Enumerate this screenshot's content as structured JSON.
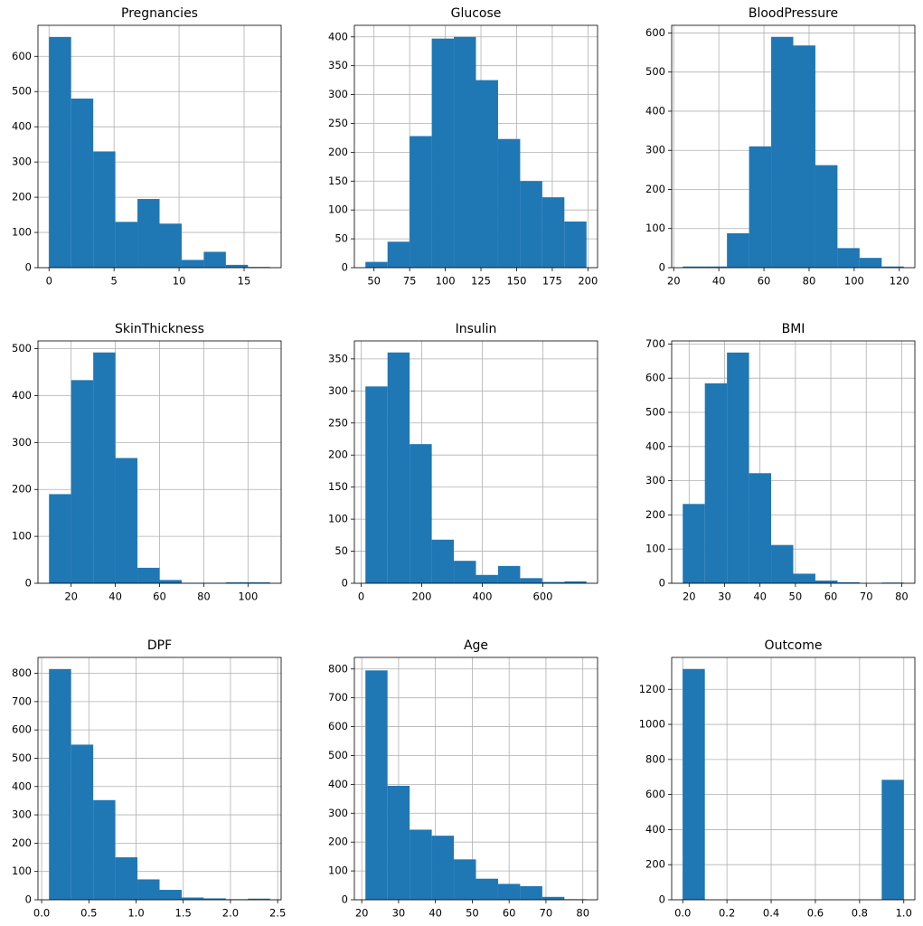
{
  "chart_data": [
    {
      "type": "histogram",
      "title": "Pregnancies",
      "color": "#1f77b4",
      "grid": true,
      "bins": [
        0,
        1.7,
        3.4,
        5.1,
        6.8,
        8.5,
        10.2,
        11.9,
        13.6,
        15.3,
        17
      ],
      "counts": [
        655,
        480,
        330,
        130,
        195,
        125,
        22,
        45,
        8,
        2
      ],
      "xlim": [
        -0.85,
        17.85
      ],
      "ylim": [
        0,
        688
      ],
      "xticks": [
        0,
        5,
        10,
        15
      ],
      "yticks": [
        0,
        100,
        200,
        300,
        400,
        500,
        600
      ]
    },
    {
      "type": "histogram",
      "title": "Glucose",
      "color": "#1f77b4",
      "grid": true,
      "bins": [
        44,
        59.5,
        75,
        90.5,
        106,
        121.5,
        137,
        152.5,
        168,
        183.5,
        199
      ],
      "counts": [
        10,
        45,
        228,
        397,
        400,
        325,
        223,
        150,
        122,
        80
      ],
      "xlim": [
        36.25,
        206.75
      ],
      "ylim": [
        0,
        420
      ],
      "xticks": [
        50,
        75,
        100,
        125,
        150,
        175,
        200
      ],
      "yticks": [
        0,
        50,
        100,
        150,
        200,
        250,
        300,
        350,
        400
      ]
    },
    {
      "type": "histogram",
      "title": "BloodPressure",
      "color": "#1f77b4",
      "grid": true,
      "bins": [
        24,
        33.8,
        43.6,
        53.4,
        63.2,
        73,
        82.8,
        92.6,
        102.4,
        112.2,
        122
      ],
      "counts": [
        3,
        3,
        88,
        310,
        590,
        568,
        262,
        50,
        25,
        3
      ],
      "xlim": [
        19.1,
        126.9
      ],
      "ylim": [
        0,
        619.5
      ],
      "xticks": [
        20,
        40,
        60,
        80,
        100,
        120
      ],
      "yticks": [
        0,
        100,
        200,
        300,
        400,
        500,
        600
      ]
    },
    {
      "type": "histogram",
      "title": "SkinThickness",
      "color": "#1f77b4",
      "grid": true,
      "bins": [
        10,
        20,
        30,
        40,
        50,
        60,
        70,
        80,
        90,
        100,
        110
      ],
      "counts": [
        190,
        433,
        492,
        267,
        33,
        7,
        1,
        1,
        2,
        2
      ],
      "xlim": [
        5,
        115
      ],
      "ylim": [
        0,
        516.6
      ],
      "xticks": [
        20,
        40,
        60,
        80,
        100
      ],
      "yticks": [
        0,
        100,
        200,
        300,
        400,
        500
      ]
    },
    {
      "type": "histogram",
      "title": "Insulin",
      "color": "#1f77b4",
      "grid": true,
      "bins": [
        14,
        87,
        160,
        233,
        306,
        379,
        452,
        525,
        598,
        671,
        744
      ],
      "counts": [
        307,
        360,
        217,
        68,
        35,
        13,
        27,
        8,
        2,
        3
      ],
      "xlim": [
        -22.5,
        780.5
      ],
      "ylim": [
        0,
        378
      ],
      "xticks": [
        0,
        200,
        400,
        600
      ],
      "yticks": [
        0,
        50,
        100,
        150,
        200,
        250,
        300,
        350
      ]
    },
    {
      "type": "histogram",
      "title": "BMI",
      "color": "#1f77b4",
      "grid": true,
      "bins": [
        18.2,
        24.44,
        30.68,
        36.92,
        43.16,
        49.4,
        55.64,
        61.88,
        68.12,
        74.36,
        80.6
      ],
      "counts": [
        232,
        585,
        675,
        322,
        112,
        28,
        8,
        3,
        0,
        2
      ],
      "xlim": [
        15.08,
        83.72
      ],
      "ylim": [
        0,
        709
      ],
      "xticks": [
        20,
        30,
        40,
        50,
        60,
        70,
        80
      ],
      "yticks": [
        0,
        100,
        200,
        300,
        400,
        500,
        600,
        700
      ]
    },
    {
      "type": "histogram",
      "title": "DPF",
      "color": "#1f77b4",
      "grid": true,
      "bins": [
        0.078,
        0.3122,
        0.5464,
        0.7806,
        1.0148,
        1.249,
        1.4832,
        1.7174,
        1.9516,
        2.1858,
        2.42
      ],
      "counts": [
        815,
        548,
        352,
        150,
        72,
        35,
        8,
        5,
        2,
        4
      ],
      "xlim": [
        -0.039,
        2.537
      ],
      "ylim": [
        0,
        856
      ],
      "xticks": [
        {
          "value": 0,
          "label": "0.0"
        },
        0.5,
        {
          "value": 1,
          "label": "1.0"
        },
        1.5,
        {
          "value": 2,
          "label": "2.0"
        },
        2.5
      ],
      "yticks": [
        0,
        100,
        200,
        300,
        400,
        500,
        600,
        700,
        800
      ]
    },
    {
      "type": "histogram",
      "title": "Age",
      "color": "#1f77b4",
      "grid": true,
      "bins": [
        21,
        27,
        33,
        39,
        45,
        51,
        57,
        63,
        69,
        75,
        81
      ],
      "counts": [
        795,
        395,
        243,
        222,
        140,
        73,
        55,
        47,
        10,
        2
      ],
      "xlim": [
        18,
        84
      ],
      "ylim": [
        0,
        840
      ],
      "xticks": [
        20,
        30,
        40,
        50,
        60,
        70,
        80
      ],
      "yticks": [
        0,
        100,
        200,
        300,
        400,
        500,
        600,
        700,
        800
      ]
    },
    {
      "type": "histogram",
      "title": "Outcome",
      "color": "#1f77b4",
      "grid": true,
      "bins": [
        0,
        0.1,
        0.2,
        0.3,
        0.4,
        0.5,
        0.6,
        0.7,
        0.8,
        0.9,
        1
      ],
      "counts": [
        1316,
        0,
        0,
        0,
        0,
        0,
        0,
        0,
        0,
        684
      ],
      "xlim": [
        -0.05,
        1.05
      ],
      "ylim": [
        0,
        1381.8
      ],
      "xticks": [
        {
          "value": 0,
          "label": "0.0"
        },
        0.2,
        0.4,
        0.6,
        0.8,
        {
          "value": 1,
          "label": "1.0"
        }
      ],
      "yticks": [
        0,
        200,
        400,
        600,
        800,
        1000,
        1200
      ]
    }
  ]
}
